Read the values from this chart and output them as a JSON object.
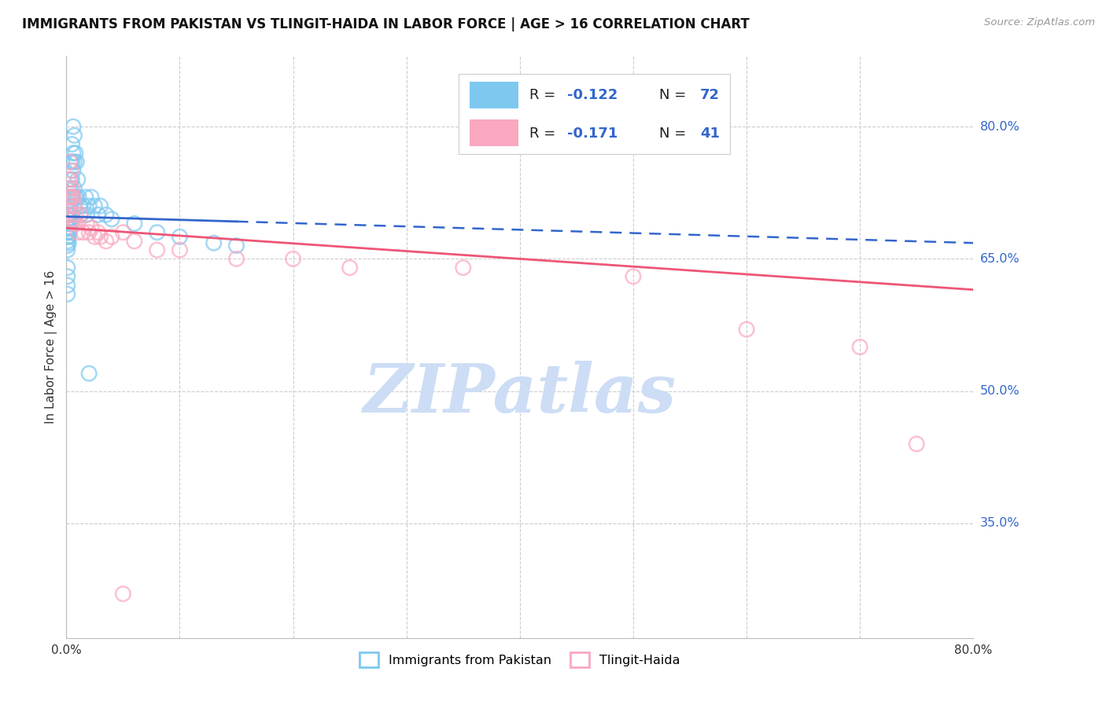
{
  "title": "IMMIGRANTS FROM PAKISTAN VS TLINGIT-HAIDA IN LABOR FORCE | AGE > 16 CORRELATION CHART",
  "source_text": "Source: ZipAtlas.com",
  "ylabel": "In Labor Force | Age > 16",
  "y_tick_labels": [
    "80.0%",
    "65.0%",
    "50.0%",
    "35.0%"
  ],
  "y_tick_values": [
    0.8,
    0.65,
    0.5,
    0.35
  ],
  "xlim": [
    0.0,
    0.8
  ],
  "ylim": [
    0.22,
    0.88
  ],
  "color_blue": "#7EC8F0",
  "color_pink": "#F9A8C0",
  "line_blue": "#3366CC",
  "line_pink": "#EE5577",
  "watermark_text": "ZIPatlas",
  "watermark_color": "#CCDDF5",
  "blue_scatter": [
    [
      0.001,
      0.685
    ],
    [
      0.001,
      0.69
    ],
    [
      0.001,
      0.695
    ],
    [
      0.001,
      0.7
    ],
    [
      0.001,
      0.68
    ],
    [
      0.001,
      0.675
    ],
    [
      0.001,
      0.67
    ],
    [
      0.001,
      0.665
    ],
    [
      0.001,
      0.66
    ],
    [
      0.001,
      0.71
    ],
    [
      0.002,
      0.715
    ],
    [
      0.002,
      0.7
    ],
    [
      0.002,
      0.695
    ],
    [
      0.002,
      0.685
    ],
    [
      0.002,
      0.68
    ],
    [
      0.002,
      0.675
    ],
    [
      0.002,
      0.668
    ],
    [
      0.003,
      0.73
    ],
    [
      0.003,
      0.72
    ],
    [
      0.003,
      0.71
    ],
    [
      0.003,
      0.7
    ],
    [
      0.003,
      0.695
    ],
    [
      0.003,
      0.69
    ],
    [
      0.003,
      0.685
    ],
    [
      0.003,
      0.68
    ],
    [
      0.004,
      0.76
    ],
    [
      0.004,
      0.74
    ],
    [
      0.004,
      0.72
    ],
    [
      0.004,
      0.71
    ],
    [
      0.004,
      0.7
    ],
    [
      0.004,
      0.695
    ],
    [
      0.005,
      0.78
    ],
    [
      0.005,
      0.76
    ],
    [
      0.005,
      0.74
    ],
    [
      0.005,
      0.72
    ],
    [
      0.005,
      0.7
    ],
    [
      0.006,
      0.8
    ],
    [
      0.006,
      0.77
    ],
    [
      0.006,
      0.75
    ],
    [
      0.006,
      0.72
    ],
    [
      0.007,
      0.79
    ],
    [
      0.007,
      0.76
    ],
    [
      0.007,
      0.73
    ],
    [
      0.007,
      0.71
    ],
    [
      0.008,
      0.77
    ],
    [
      0.008,
      0.72
    ],
    [
      0.009,
      0.76
    ],
    [
      0.009,
      0.72
    ],
    [
      0.01,
      0.74
    ],
    [
      0.011,
      0.72
    ],
    [
      0.012,
      0.71
    ],
    [
      0.013,
      0.7
    ],
    [
      0.015,
      0.71
    ],
    [
      0.017,
      0.72
    ],
    [
      0.018,
      0.7
    ],
    [
      0.02,
      0.71
    ],
    [
      0.022,
      0.72
    ],
    [
      0.025,
      0.71
    ],
    [
      0.028,
      0.7
    ],
    [
      0.03,
      0.71
    ],
    [
      0.035,
      0.7
    ],
    [
      0.04,
      0.695
    ],
    [
      0.06,
      0.69
    ],
    [
      0.08,
      0.68
    ],
    [
      0.1,
      0.675
    ],
    [
      0.13,
      0.668
    ],
    [
      0.15,
      0.665
    ],
    [
      0.02,
      0.52
    ],
    [
      0.001,
      0.64
    ],
    [
      0.001,
      0.63
    ],
    [
      0.001,
      0.62
    ],
    [
      0.001,
      0.61
    ]
  ],
  "pink_scatter": [
    [
      0.001,
      0.73
    ],
    [
      0.001,
      0.72
    ],
    [
      0.002,
      0.74
    ],
    [
      0.002,
      0.71
    ],
    [
      0.003,
      0.76
    ],
    [
      0.003,
      0.74
    ],
    [
      0.003,
      0.72
    ],
    [
      0.004,
      0.75
    ],
    [
      0.004,
      0.72
    ],
    [
      0.005,
      0.73
    ],
    [
      0.005,
      0.7
    ],
    [
      0.006,
      0.72
    ],
    [
      0.006,
      0.695
    ],
    [
      0.007,
      0.71
    ],
    [
      0.007,
      0.69
    ],
    [
      0.008,
      0.7
    ],
    [
      0.009,
      0.69
    ],
    [
      0.01,
      0.68
    ],
    [
      0.012,
      0.7
    ],
    [
      0.015,
      0.68
    ],
    [
      0.018,
      0.69
    ],
    [
      0.02,
      0.68
    ],
    [
      0.022,
      0.685
    ],
    [
      0.025,
      0.675
    ],
    [
      0.028,
      0.68
    ],
    [
      0.03,
      0.675
    ],
    [
      0.035,
      0.67
    ],
    [
      0.04,
      0.675
    ],
    [
      0.05,
      0.68
    ],
    [
      0.06,
      0.67
    ],
    [
      0.08,
      0.66
    ],
    [
      0.1,
      0.66
    ],
    [
      0.15,
      0.65
    ],
    [
      0.2,
      0.65
    ],
    [
      0.25,
      0.64
    ],
    [
      0.35,
      0.64
    ],
    [
      0.5,
      0.63
    ],
    [
      0.6,
      0.57
    ],
    [
      0.7,
      0.55
    ],
    [
      0.75,
      0.44
    ],
    [
      0.05,
      0.27
    ]
  ],
  "blue_line": {
    "x0": 0.0,
    "x1": 0.8,
    "y0": 0.698,
    "y1": 0.668,
    "solid_end": 0.15,
    "dashed_start": 0.15
  },
  "pink_line": {
    "x0": 0.0,
    "x1": 0.8,
    "y0": 0.685,
    "y1": 0.615
  }
}
